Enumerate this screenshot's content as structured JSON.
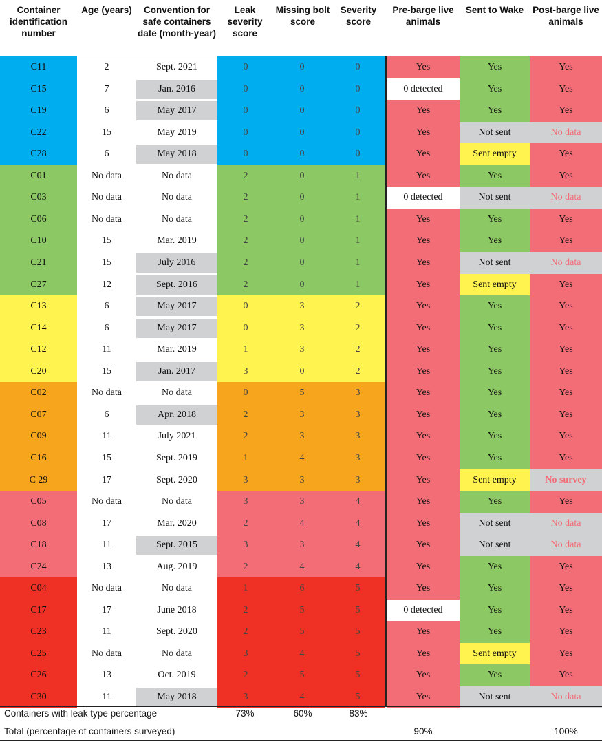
{
  "headers": [
    "Container identification number",
    "Age (years)",
    "Convention for safe containers date (month-year)",
    "Leak severity score",
    "Missing bolt score",
    "Severity score",
    "Pre-barge live animals",
    "Sent to Wake",
    "Post-barge live animals"
  ],
  "colors": {
    "blue": "#00aeef",
    "green": "#8cc863",
    "yellow": "#fff34f",
    "orange": "#f8a51e",
    "pink": "#f26d75",
    "red": "#ee3124",
    "gray": "#d0d1d3",
    "white": "#ffffff",
    "nodata_text": "#f26d75"
  },
  "rows": [
    {
      "id": "C11",
      "age": "2",
      "date": "Sept. 2021",
      "date_gray": false,
      "leak": "0",
      "bolt": "0",
      "severity": "0",
      "group": "blue",
      "pre": "Yes",
      "pre_color": "pink",
      "wake": "Yes",
      "wake_color": "green",
      "post": "Yes",
      "post_color": "pink"
    },
    {
      "id": "C15",
      "age": "7",
      "date": "Jan. 2016",
      "date_gray": true,
      "leak": "0",
      "bolt": "0",
      "severity": "0",
      "group": "blue",
      "pre": "0 detected",
      "pre_color": "white",
      "wake": "Yes",
      "wake_color": "green",
      "post": "Yes",
      "post_color": "pink"
    },
    {
      "id": "C19",
      "age": "6",
      "date": "May 2017",
      "date_gray": true,
      "leak": "0",
      "bolt": "0",
      "severity": "0",
      "group": "blue",
      "pre": "Yes",
      "pre_color": "pink",
      "wake": "Yes",
      "wake_color": "green",
      "post": "Yes",
      "post_color": "pink"
    },
    {
      "id": "C22",
      "age": "15",
      "date": "May 2019",
      "date_gray": false,
      "leak": "0",
      "bolt": "0",
      "severity": "0",
      "group": "blue",
      "pre": "Yes",
      "pre_color": "pink",
      "wake": "Not sent",
      "wake_color": "gray",
      "post": "No data",
      "post_color": "gray"
    },
    {
      "id": "C28",
      "age": "6",
      "date": "May 2018",
      "date_gray": true,
      "leak": "0",
      "bolt": "0",
      "severity": "0",
      "group": "blue",
      "pre": "Yes",
      "pre_color": "pink",
      "wake": "Sent empty",
      "wake_color": "yellow",
      "post": "Yes",
      "post_color": "pink"
    },
    {
      "id": "C01",
      "age": "No data",
      "date": "No data",
      "date_gray": false,
      "leak": "2",
      "bolt": "0",
      "severity": "1",
      "group": "green",
      "pre": "Yes",
      "pre_color": "pink",
      "wake": "Yes",
      "wake_color": "green",
      "post": "Yes",
      "post_color": "pink"
    },
    {
      "id": "C03",
      "age": "No data",
      "date": "No data",
      "date_gray": false,
      "leak": "2",
      "bolt": "0",
      "severity": "1",
      "group": "green",
      "pre": "0 detected",
      "pre_color": "white",
      "wake": "Not sent",
      "wake_color": "gray",
      "post": "No data",
      "post_color": "gray"
    },
    {
      "id": "C06",
      "age": "No data",
      "date": "No data",
      "date_gray": false,
      "leak": "2",
      "bolt": "0",
      "severity": "1",
      "group": "green",
      "pre": "Yes",
      "pre_color": "pink",
      "wake": "Yes",
      "wake_color": "green",
      "post": "Yes",
      "post_color": "pink"
    },
    {
      "id": "C10",
      "age": "15",
      "date": "Mar. 2019",
      "date_gray": false,
      "leak": "2",
      "bolt": "0",
      "severity": "1",
      "group": "green",
      "pre": "Yes",
      "pre_color": "pink",
      "wake": "Yes",
      "wake_color": "green",
      "post": "Yes",
      "post_color": "pink"
    },
    {
      "id": "C21",
      "age": "15",
      "date": "July 2016",
      "date_gray": true,
      "leak": "2",
      "bolt": "0",
      "severity": "1",
      "group": "green",
      "pre": "Yes",
      "pre_color": "pink",
      "wake": "Not sent",
      "wake_color": "gray",
      "post": "No data",
      "post_color": "gray"
    },
    {
      "id": "C27",
      "age": "12",
      "date": "Sept. 2016",
      "date_gray": true,
      "leak": "2",
      "bolt": "0",
      "severity": "1",
      "group": "green",
      "pre": "Yes",
      "pre_color": "pink",
      "wake": "Sent empty",
      "wake_color": "yellow",
      "post": "Yes",
      "post_color": "pink"
    },
    {
      "id": "C13",
      "age": "6",
      "date": "May 2017",
      "date_gray": true,
      "leak": "0",
      "bolt": "3",
      "severity": "2",
      "group": "yellow",
      "pre": "Yes",
      "pre_color": "pink",
      "wake": "Yes",
      "wake_color": "green",
      "post": "Yes",
      "post_color": "pink"
    },
    {
      "id": "C14",
      "age": "6",
      "date": "May 2017",
      "date_gray": true,
      "leak": "0",
      "bolt": "3",
      "severity": "2",
      "group": "yellow",
      "pre": "Yes",
      "pre_color": "pink",
      "wake": "Yes",
      "wake_color": "green",
      "post": "Yes",
      "post_color": "pink"
    },
    {
      "id": "C12",
      "age": "11",
      "date": "Mar. 2019",
      "date_gray": false,
      "leak": "1",
      "bolt": "3",
      "severity": "2",
      "group": "yellow",
      "pre": "Yes",
      "pre_color": "pink",
      "wake": "Yes",
      "wake_color": "green",
      "post": "Yes",
      "post_color": "pink"
    },
    {
      "id": "C20",
      "age": "15",
      "date": "Jan. 2017",
      "date_gray": true,
      "leak": "3",
      "bolt": "0",
      "severity": "2",
      "group": "yellow",
      "pre": "Yes",
      "pre_color": "pink",
      "wake": "Yes",
      "wake_color": "green",
      "post": "Yes",
      "post_color": "pink"
    },
    {
      "id": "C02",
      "age": "No data",
      "date": "No data",
      "date_gray": false,
      "leak": "0",
      "bolt": "5",
      "severity": "3",
      "group": "orange",
      "pre": "Yes",
      "pre_color": "pink",
      "wake": "Yes",
      "wake_color": "green",
      "post": "Yes",
      "post_color": "pink"
    },
    {
      "id": "C07",
      "age": "6",
      "date": "Apr. 2018",
      "date_gray": true,
      "leak": "2",
      "bolt": "3",
      "severity": "3",
      "group": "orange",
      "pre": "Yes",
      "pre_color": "pink",
      "wake": "Yes",
      "wake_color": "green",
      "post": "Yes",
      "post_color": "pink"
    },
    {
      "id": "C09",
      "age": "11",
      "date": "July 2021",
      "date_gray": false,
      "leak": "2",
      "bolt": "3",
      "severity": "3",
      "group": "orange",
      "pre": "Yes",
      "pre_color": "pink",
      "wake": "Yes",
      "wake_color": "green",
      "post": "Yes",
      "post_color": "pink"
    },
    {
      "id": "C16",
      "age": "15",
      "date": "Sept. 2019",
      "date_gray": false,
      "leak": "1",
      "bolt": "4",
      "severity": "3",
      "group": "orange",
      "pre": "Yes",
      "pre_color": "pink",
      "wake": "Yes",
      "wake_color": "green",
      "post": "Yes",
      "post_color": "pink"
    },
    {
      "id": "C 29",
      "age": "17",
      "date": "Sept. 2020",
      "date_gray": false,
      "leak": "3",
      "bolt": "3",
      "severity": "3",
      "group": "orange",
      "pre": "Yes",
      "pre_color": "pink",
      "wake": "Sent empty",
      "wake_color": "yellow",
      "post": "No survey",
      "post_color": "gray"
    },
    {
      "id": "C05",
      "age": "No data",
      "date": "No data",
      "date_gray": false,
      "leak": "3",
      "bolt": "3",
      "severity": "4",
      "group": "pink",
      "pre": "Yes",
      "pre_color": "pink",
      "wake": "Yes",
      "wake_color": "green",
      "post": "Yes",
      "post_color": "pink"
    },
    {
      "id": "C08",
      "age": "17",
      "date": "Mar. 2020",
      "date_gray": false,
      "leak": "2",
      "bolt": "4",
      "severity": "4",
      "group": "pink",
      "pre": "Yes",
      "pre_color": "pink",
      "wake": "Not sent",
      "wake_color": "gray",
      "post": "No data",
      "post_color": "gray"
    },
    {
      "id": "C18",
      "age": "11",
      "date": "Sept. 2015",
      "date_gray": true,
      "leak": "3",
      "bolt": "3",
      "severity": "4",
      "group": "pink",
      "pre": "Yes",
      "pre_color": "pink",
      "wake": "Not sent",
      "wake_color": "gray",
      "post": "No data",
      "post_color": "gray"
    },
    {
      "id": "C24",
      "age": "13",
      "date": "Aug. 2019",
      "date_gray": false,
      "leak": "2",
      "bolt": "4",
      "severity": "4",
      "group": "pink",
      "pre": "Yes",
      "pre_color": "pink",
      "wake": "Yes",
      "wake_color": "green",
      "post": "Yes",
      "post_color": "pink"
    },
    {
      "id": "C04",
      "age": "No data",
      "date": "No data",
      "date_gray": false,
      "leak": "1",
      "bolt": "6",
      "severity": "5",
      "group": "red",
      "pre": "Yes",
      "pre_color": "pink",
      "wake": "Yes",
      "wake_color": "green",
      "post": "Yes",
      "post_color": "pink"
    },
    {
      "id": "C17",
      "age": "17",
      "date": "June 2018",
      "date_gray": false,
      "leak": "2",
      "bolt": "5",
      "severity": "5",
      "group": "red",
      "pre": "0 detected",
      "pre_color": "white",
      "wake": "Yes",
      "wake_color": "green",
      "post": "Yes",
      "post_color": "pink"
    },
    {
      "id": "C23",
      "age": "11",
      "date": "Sept. 2020",
      "date_gray": false,
      "leak": "2",
      "bolt": "5",
      "severity": "5",
      "group": "red",
      "pre": "Yes",
      "pre_color": "pink",
      "wake": "Yes",
      "wake_color": "green",
      "post": "Yes",
      "post_color": "pink"
    },
    {
      "id": "C25",
      "age": "No data",
      "date": "No data",
      "date_gray": false,
      "leak": "3",
      "bolt": "4",
      "severity": "5",
      "group": "red",
      "pre": "Yes",
      "pre_color": "pink",
      "wake": "Sent empty",
      "wake_color": "yellow",
      "post": "Yes",
      "post_color": "pink"
    },
    {
      "id": "C26",
      "age": "13",
      "date": "Oct. 2019",
      "date_gray": false,
      "leak": "2",
      "bolt": "5",
      "severity": "5",
      "group": "red",
      "pre": "Yes",
      "pre_color": "pink",
      "wake": "Yes",
      "wake_color": "green",
      "post": "Yes",
      "post_color": "pink"
    },
    {
      "id": "C30",
      "age": "11",
      "date": "May 2018",
      "date_gray": true,
      "leak": "3",
      "bolt": "4",
      "severity": "5",
      "group": "red",
      "pre": "Yes",
      "pre_color": "pink",
      "wake": "Not sent",
      "wake_color": "gray",
      "post": "No data",
      "post_color": "gray"
    }
  ],
  "footer": {
    "leak_type_label": "Containers with leak type percentage",
    "leak_pct": "73%",
    "bolt_pct": "60%",
    "severity_pct": "83%",
    "total_label": "Total (percentage of containers surveyed)",
    "pre_total": "90%",
    "post_total": "100%"
  }
}
